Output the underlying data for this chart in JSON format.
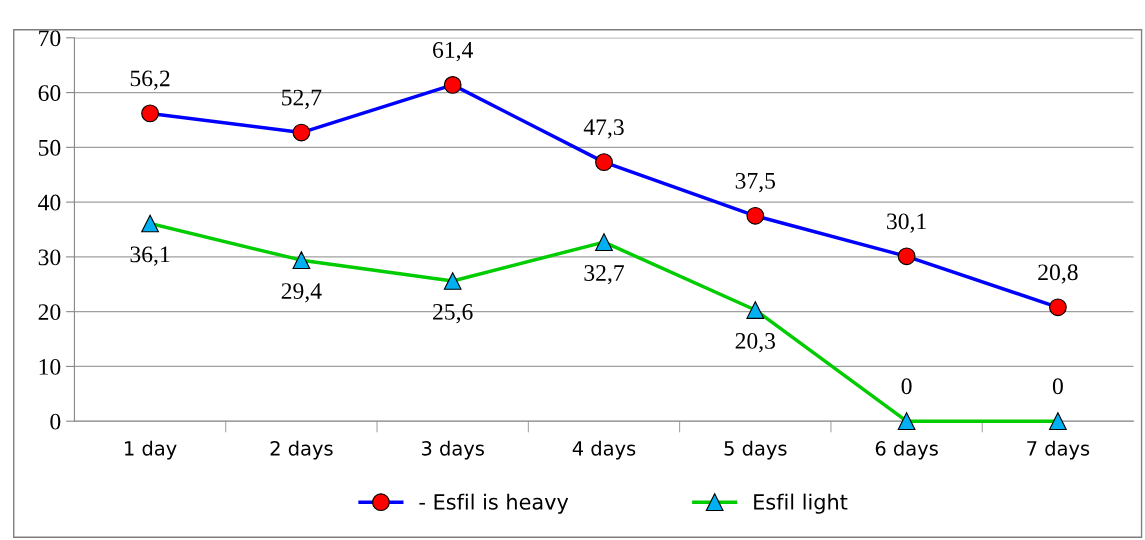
{
  "chart_data": {
    "type": "line",
    "categories": [
      "1 day",
      "2 days",
      "3 days",
      "4 days",
      "5 days",
      "6 days",
      "7 days"
    ],
    "series": [
      {
        "name": "- Esfil is heavy",
        "color": "#0000ff",
        "colors": [
          "#ff0000",
          "#ff0000",
          "#ff0000",
          "#ff0000",
          "#ff0000",
          "#ff0000",
          "#ff0000"
        ],
        "marker": "circle",
        "values": [
          56.2,
          52.7,
          61.4,
          47.3,
          37.5,
          30.1,
          20.8
        ],
        "value_labels": [
          "56,2",
          "52,7",
          "61,4",
          "47,3",
          "37,5",
          "30,1",
          "20,8"
        ]
      },
      {
        "name": "Esfil light",
        "color": "#00cc00",
        "colors": [
          "#00b0f0",
          "#00b0f0",
          "#00b0f0",
          "#00b0f0",
          "#00b0f0",
          "#00b0f0",
          "#00b0f0"
        ],
        "marker": "triangle",
        "values": [
          36.1,
          29.4,
          25.6,
          32.7,
          20.3,
          0,
          0
        ],
        "value_labels": [
          "36,1",
          "29,4",
          "25,6",
          "32,7",
          "20,3",
          "0",
          "0"
        ]
      }
    ],
    "ylim": [
      0,
      70
    ],
    "yticks": [
      0,
      10,
      20,
      30,
      40,
      50,
      60,
      70
    ],
    "grid": "y",
    "legend": "bottom"
  }
}
